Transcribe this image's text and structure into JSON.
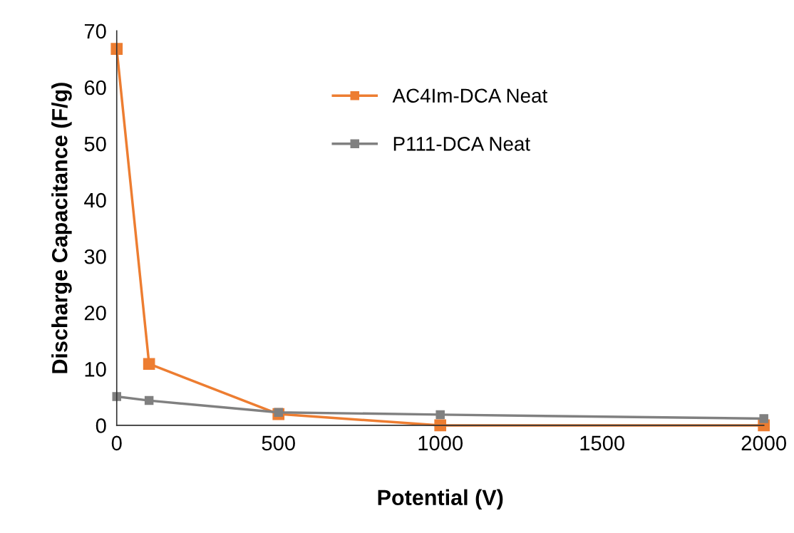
{
  "chart_data": {
    "type": "line",
    "xlabel": "Potential (V)",
    "ylabel": "Discharge Capacitance (F/g)",
    "series": [
      {
        "name": "AC4Im-DCA Neat",
        "color": "#ed7d31",
        "x": [
          0,
          100,
          500,
          1000,
          2000
        ],
        "values": [
          66.8,
          10.9,
          2.0,
          0,
          0
        ]
      },
      {
        "name": "P111-DCA Neat",
        "color": "#808080",
        "x": [
          0,
          100,
          500,
          1000,
          2000
        ],
        "values": [
          5.1,
          4.4,
          2.3,
          1.9,
          1.2
        ]
      }
    ],
    "xlim": [
      0,
      2000
    ],
    "ylim": [
      0,
      70
    ],
    "xticks": [
      0,
      500,
      1000,
      1500,
      2000
    ],
    "yticks": [
      0,
      10,
      20,
      30,
      40,
      50,
      60,
      70
    ],
    "marker": "square",
    "line_style": "solid",
    "grid": false,
    "legend": "top"
  }
}
